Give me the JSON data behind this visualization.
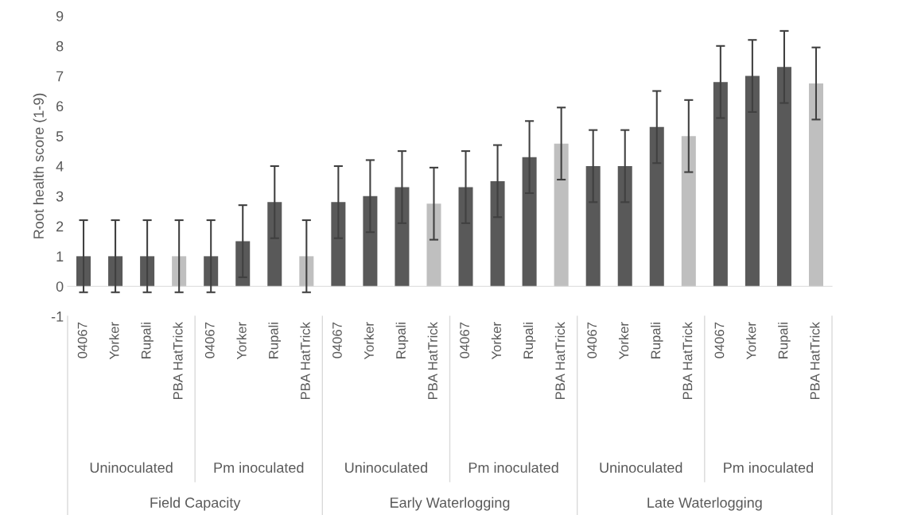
{
  "chart_data": {
    "type": "bar",
    "ylabel": "Root health score (1-9)",
    "categories": [
      "04067",
      "Yorker",
      "Rupali",
      "PBA HatTrick",
      "04067",
      "Yorker",
      "Rupali",
      "PBA HatTrick",
      "04067",
      "Yorker",
      "Rupali",
      "PBA HatTrick",
      "04067",
      "Yorker",
      "Rupali",
      "PBA HatTrick",
      "04067",
      "Yorker",
      "Rupali",
      "PBA HatTrick",
      "04067",
      "Yorker",
      "Rupali",
      "PBA HatTrick"
    ],
    "values": [
      1,
      1,
      1,
      1,
      1,
      1.5,
      2.8,
      1,
      2.8,
      3.0,
      3.3,
      2.75,
      3.3,
      3.5,
      4.3,
      4.75,
      4.0,
      4.0,
      5.3,
      5.0,
      6.8,
      7.0,
      7.3,
      6.75
    ],
    "errors": [
      1.2,
      1.2,
      1.2,
      1.2,
      1.2,
      1.2,
      1.2,
      1.2,
      1.2,
      1.2,
      1.2,
      1.2,
      1.2,
      1.2,
      1.2,
      1.2,
      1.2,
      1.2,
      1.2,
      1.2,
      1.2,
      1.2,
      1.2,
      1.2
    ],
    "colors": [
      "#595959",
      "#595959",
      "#595959",
      "#bfbfbf",
      "#595959",
      "#595959",
      "#595959",
      "#bfbfbf",
      "#595959",
      "#595959",
      "#595959",
      "#bfbfbf",
      "#595959",
      "#595959",
      "#595959",
      "#bfbfbf",
      "#595959",
      "#595959",
      "#595959",
      "#bfbfbf",
      "#595959",
      "#595959",
      "#595959",
      "#bfbfbf"
    ],
    "ylim": [
      -1,
      9
    ],
    "yticks": [
      -1,
      0,
      1,
      2,
      3,
      4,
      5,
      6,
      7,
      8,
      9
    ],
    "legend": false,
    "annotations": [
      "Uninoculated",
      "Pm inoculated",
      "Uninoculated",
      "Pm inoculated",
      "Uninoculated",
      "Pm inoculated",
      "Field Capacity",
      "Early Waterlogging",
      "Late Waterlogging"
    ]
  }
}
